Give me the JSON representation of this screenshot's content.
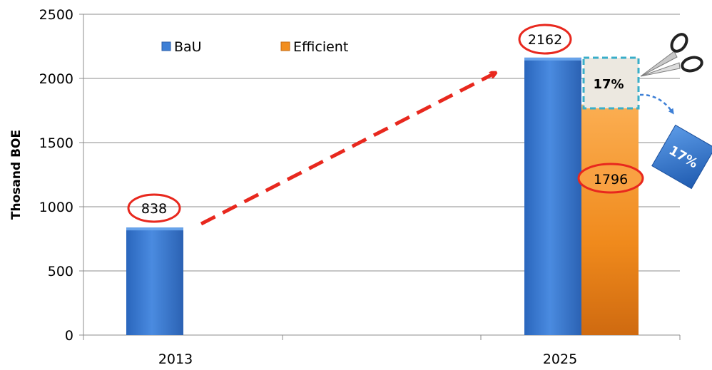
{
  "chart_data": {
    "type": "bar",
    "title": "",
    "xlabel": "",
    "ylabel": "Thosand BOE",
    "categories": [
      "2013",
      "2025"
    ],
    "ylim": [
      0,
      2500
    ],
    "yticks": [
      0,
      500,
      1000,
      1500,
      2000,
      2500
    ],
    "grid": true,
    "legend_position": "top-left",
    "series": [
      {
        "name": "BaU",
        "color": "#3d7fd6",
        "values": [
          838,
          2162
        ]
      },
      {
        "name": "Efficient",
        "color": "#f28e1e",
        "values": [
          null,
          1796
        ]
      }
    ],
    "data_labels": [
      "838",
      "2162",
      "1796"
    ],
    "annotations": {
      "reduction_label": "17%",
      "reduction_label_rotated": "17%",
      "trend_arrow": true,
      "icon": "scissors-icon"
    }
  }
}
